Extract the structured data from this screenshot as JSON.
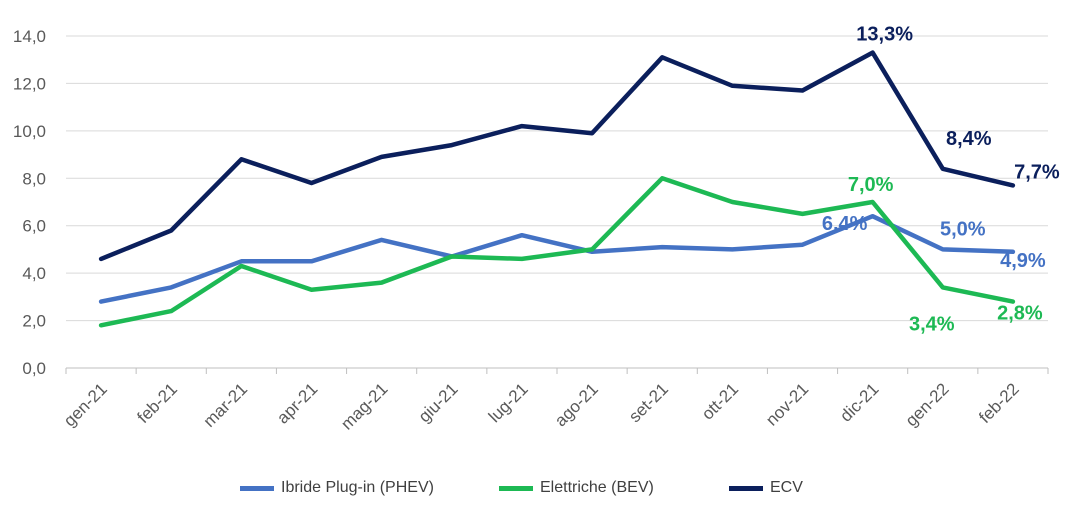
{
  "chart_data": {
    "type": "line",
    "categories": [
      "gen-21",
      "feb-21",
      "mar-21",
      "apr-21",
      "mag-21",
      "giu-21",
      "lug-21",
      "ago-21",
      "set-21",
      "ott-21",
      "nov-21",
      "dic-21",
      "gen-22",
      "feb-22"
    ],
    "ylim": [
      0,
      14
    ],
    "ytick_labels": [
      "0,0",
      "2,0",
      "4,0",
      "6,0",
      "8,0",
      "10,0",
      "12,0",
      "14,0"
    ],
    "grid": true,
    "legend_position": "bottom",
    "series": [
      {
        "name": "Ibride Plug-in (PHEV)",
        "color": "#4472C4",
        "values": [
          2.8,
          3.4,
          4.5,
          4.5,
          5.4,
          4.7,
          5.6,
          4.9,
          5.1,
          5.0,
          5.2,
          6.4,
          5.0,
          4.9
        ],
        "labels": [
          {
            "index": 11,
            "text": "6,4%"
          },
          {
            "index": 12,
            "text": "5,0%"
          },
          {
            "index": 13,
            "text": "4,9%"
          }
        ]
      },
      {
        "name": "Elettriche (BEV)",
        "color": "#1DB954",
        "values": [
          1.8,
          2.4,
          4.3,
          3.3,
          3.6,
          4.7,
          4.6,
          5.0,
          8.0,
          7.0,
          6.5,
          7.0,
          3.4,
          2.8
        ],
        "labels": [
          {
            "index": 11,
            "text": "7,0%"
          },
          {
            "index": 12,
            "text": "3,4%"
          },
          {
            "index": 13,
            "text": "2,8%"
          }
        ]
      },
      {
        "name": "ECV",
        "color": "#0B1F5C",
        "values": [
          4.6,
          5.8,
          8.8,
          7.8,
          8.9,
          9.4,
          10.2,
          9.9,
          13.1,
          11.9,
          11.7,
          13.3,
          8.4,
          7.7
        ],
        "labels": [
          {
            "index": 11,
            "text": "13,3%"
          },
          {
            "index": 12,
            "text": "8,4%"
          },
          {
            "index": 13,
            "text": "7,7%"
          }
        ]
      }
    ]
  }
}
